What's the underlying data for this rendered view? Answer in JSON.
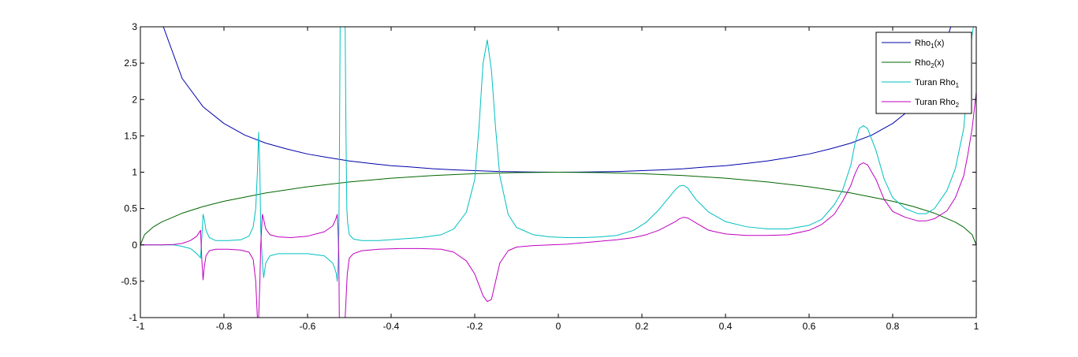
{
  "chart_data": {
    "type": "line",
    "title": "",
    "xlabel": "",
    "ylabel": "",
    "xlim": [
      -1,
      1
    ],
    "ylim": [
      -1,
      3
    ],
    "grid": false,
    "legend_position": "top-right",
    "x_ticks": [
      "-1",
      "-0.8",
      "-0.6",
      "-0.4",
      "-0.2",
      "0",
      "0.2",
      "0.4",
      "0.6",
      "0.8",
      "1"
    ],
    "y_ticks": [
      "-1",
      "-0.5",
      "0",
      "0.5",
      "1",
      "1.5",
      "2",
      "2.5",
      "3"
    ],
    "legend": [
      {
        "base": "Rho",
        "sub": "1",
        "suffix": "(x)",
        "color": "#0000aa"
      },
      {
        "base": "Rho",
        "sub": "2",
        "suffix": "(x)",
        "color": "#006600"
      },
      {
        "base": "Turan Rho",
        "sub": "1",
        "suffix": "",
        "color": "#00bfbf"
      },
      {
        "base": "Turan Rho",
        "sub": "2",
        "suffix": "",
        "color": "#bf00bf"
      }
    ],
    "series": [
      {
        "name": "Rho1(x)",
        "color": "#0000aa",
        "x": [
          -0.945,
          -0.9,
          -0.85,
          -0.8,
          -0.75,
          -0.7,
          -0.65,
          -0.6,
          -0.55,
          -0.5,
          -0.45,
          -0.4,
          -0.35,
          -0.3,
          -0.25,
          -0.2,
          -0.15,
          -0.1,
          -0.05,
          0,
          0.05,
          0.1,
          0.15,
          0.2,
          0.25,
          0.3,
          0.35,
          0.4,
          0.45,
          0.5,
          0.55,
          0.6,
          0.65,
          0.7,
          0.75,
          0.8,
          0.85,
          0.9,
          0.95,
          0.972
        ],
        "y": [
          3.0,
          2.29,
          1.9,
          1.67,
          1.51,
          1.4,
          1.32,
          1.25,
          1.2,
          1.155,
          1.12,
          1.09,
          1.07,
          1.048,
          1.033,
          1.021,
          1.011,
          1.005,
          1.001,
          1.0,
          1.001,
          1.005,
          1.011,
          1.021,
          1.033,
          1.048,
          1.07,
          1.09,
          1.12,
          1.155,
          1.2,
          1.25,
          1.32,
          1.4,
          1.51,
          1.67,
          1.9,
          2.29,
          3.2,
          4.3
        ]
      },
      {
        "name": "Rho2(x)",
        "color": "#006600",
        "x": [
          -1,
          -0.99,
          -0.97,
          -0.95,
          -0.9,
          -0.85,
          -0.8,
          -0.7,
          -0.6,
          -0.5,
          -0.4,
          -0.3,
          -0.2,
          -0.1,
          0,
          0.1,
          0.2,
          0.3,
          0.4,
          0.5,
          0.6,
          0.7,
          0.8,
          0.85,
          0.9,
          0.95,
          0.97,
          0.99,
          1
        ],
        "y": [
          0,
          0.141,
          0.243,
          0.312,
          0.436,
          0.527,
          0.6,
          0.714,
          0.8,
          0.866,
          0.917,
          0.954,
          0.98,
          0.995,
          1,
          0.995,
          0.98,
          0.954,
          0.917,
          0.866,
          0.8,
          0.714,
          0.6,
          0.527,
          0.436,
          0.312,
          0.243,
          0.141,
          0
        ]
      },
      {
        "name": "Turan Rho1",
        "color": "#00bfbf",
        "x": [
          -1,
          -0.95,
          -0.92,
          -0.9,
          -0.88,
          -0.865,
          -0.856,
          -0.853,
          -0.85,
          -0.847,
          -0.843,
          -0.835,
          -0.82,
          -0.79,
          -0.76,
          -0.74,
          -0.73,
          -0.724,
          -0.72,
          -0.717,
          -0.714,
          -0.712,
          -0.708,
          -0.705,
          -0.7,
          -0.69,
          -0.67,
          -0.64,
          -0.6,
          -0.56,
          -0.54,
          -0.535,
          -0.531,
          -0.529,
          -0.527,
          -0.525,
          -0.524,
          -0.522,
          -0.52,
          -0.518,
          -0.516,
          -0.514,
          -0.512,
          -0.51,
          -0.508,
          -0.506,
          -0.504,
          -0.5,
          -0.49,
          -0.47,
          -0.43,
          -0.38,
          -0.33,
          -0.28,
          -0.25,
          -0.22,
          -0.2,
          -0.19,
          -0.18,
          -0.17,
          -0.16,
          -0.15,
          -0.14,
          -0.12,
          -0.1,
          -0.06,
          -0.02,
          0.02,
          0.06,
          0.1,
          0.14,
          0.18,
          0.21,
          0.24,
          0.26,
          0.28,
          0.29,
          0.3,
          0.31,
          0.33,
          0.36,
          0.4,
          0.45,
          0.5,
          0.55,
          0.6,
          0.63,
          0.66,
          0.68,
          0.7,
          0.71,
          0.72,
          0.73,
          0.74,
          0.76,
          0.78,
          0.8,
          0.83,
          0.86,
          0.88,
          0.9,
          0.93,
          0.95,
          0.97,
          0.98,
          0.99,
          1
        ],
        "y": [
          0,
          0,
          0,
          -0.02,
          -0.05,
          -0.12,
          -0.18,
          0.1,
          0.42,
          0.35,
          0.2,
          0.1,
          0.06,
          0.06,
          0.07,
          0.12,
          0.25,
          0.5,
          1.0,
          1.55,
          1.0,
          0.2,
          -0.25,
          -0.45,
          -0.25,
          -0.15,
          -0.12,
          -0.12,
          -0.12,
          -0.15,
          -0.25,
          -0.32,
          -0.4,
          -0.5,
          -0.3,
          0.2,
          1.0,
          3.0,
          3.0,
          3.0,
          3.0,
          3.0,
          3.0,
          3.0,
          1.5,
          0.5,
          0.3,
          0.14,
          0.08,
          0.06,
          0.06,
          0.08,
          0.1,
          0.14,
          0.22,
          0.45,
          0.9,
          1.6,
          2.5,
          2.82,
          2.4,
          1.6,
          0.95,
          0.42,
          0.24,
          0.14,
          0.11,
          0.1,
          0.1,
          0.11,
          0.13,
          0.2,
          0.31,
          0.48,
          0.62,
          0.76,
          0.81,
          0.82,
          0.78,
          0.62,
          0.45,
          0.32,
          0.25,
          0.22,
          0.22,
          0.27,
          0.35,
          0.55,
          0.75,
          1.1,
          1.4,
          1.6,
          1.64,
          1.6,
          1.3,
          0.9,
          0.65,
          0.5,
          0.43,
          0.43,
          0.5,
          0.75,
          1.05,
          1.6,
          2.3,
          2.9,
          3.2
        ]
      },
      {
        "name": "Turan Rho2",
        "color": "#bf00bf",
        "x": [
          -1,
          -0.95,
          -0.92,
          -0.9,
          -0.88,
          -0.865,
          -0.856,
          -0.853,
          -0.85,
          -0.847,
          -0.843,
          -0.835,
          -0.82,
          -0.79,
          -0.76,
          -0.74,
          -0.73,
          -0.724,
          -0.72,
          -0.717,
          -0.714,
          -0.712,
          -0.708,
          -0.705,
          -0.7,
          -0.69,
          -0.67,
          -0.64,
          -0.6,
          -0.56,
          -0.54,
          -0.535,
          -0.531,
          -0.529,
          -0.527,
          -0.525,
          -0.524,
          -0.522,
          -0.52,
          -0.516,
          -0.51,
          -0.505,
          -0.5,
          -0.49,
          -0.47,
          -0.43,
          -0.38,
          -0.33,
          -0.28,
          -0.25,
          -0.22,
          -0.2,
          -0.19,
          -0.18,
          -0.17,
          -0.16,
          -0.15,
          -0.14,
          -0.12,
          -0.1,
          -0.06,
          -0.02,
          0.02,
          0.06,
          0.1,
          0.14,
          0.18,
          0.21,
          0.24,
          0.26,
          0.28,
          0.29,
          0.3,
          0.31,
          0.33,
          0.36,
          0.4,
          0.45,
          0.5,
          0.55,
          0.6,
          0.63,
          0.66,
          0.68,
          0.7,
          0.71,
          0.72,
          0.73,
          0.74,
          0.76,
          0.78,
          0.8,
          0.83,
          0.86,
          0.88,
          0.9,
          0.93,
          0.95,
          0.97,
          0.98,
          0.99,
          1
        ],
        "y": [
          0,
          0,
          0.005,
          0.02,
          0.06,
          0.12,
          0.2,
          -0.2,
          -0.48,
          -0.3,
          -0.15,
          -0.08,
          -0.06,
          -0.06,
          -0.07,
          -0.1,
          -0.2,
          -0.5,
          -1.0,
          -1.0,
          -0.5,
          0.0,
          0.42,
          0.35,
          0.22,
          0.14,
          0.11,
          0.1,
          0.12,
          0.18,
          0.26,
          0.32,
          0.38,
          0.42,
          0.2,
          -0.2,
          -1.0,
          -1.0,
          -1.0,
          -1.0,
          -1.0,
          -0.4,
          -0.18,
          -0.12,
          -0.08,
          -0.06,
          -0.05,
          -0.05,
          -0.06,
          -0.1,
          -0.22,
          -0.4,
          -0.55,
          -0.7,
          -0.78,
          -0.75,
          -0.5,
          -0.25,
          -0.08,
          -0.03,
          -0.01,
          0.0,
          0.01,
          0.03,
          0.05,
          0.07,
          0.1,
          0.14,
          0.2,
          0.26,
          0.32,
          0.36,
          0.38,
          0.37,
          0.3,
          0.2,
          0.15,
          0.13,
          0.13,
          0.14,
          0.2,
          0.28,
          0.42,
          0.6,
          0.82,
          0.98,
          1.1,
          1.13,
          1.1,
          0.9,
          0.62,
          0.46,
          0.38,
          0.33,
          0.33,
          0.36,
          0.47,
          0.65,
          0.95,
          1.25,
          1.6,
          2.1
        ]
      }
    ]
  }
}
